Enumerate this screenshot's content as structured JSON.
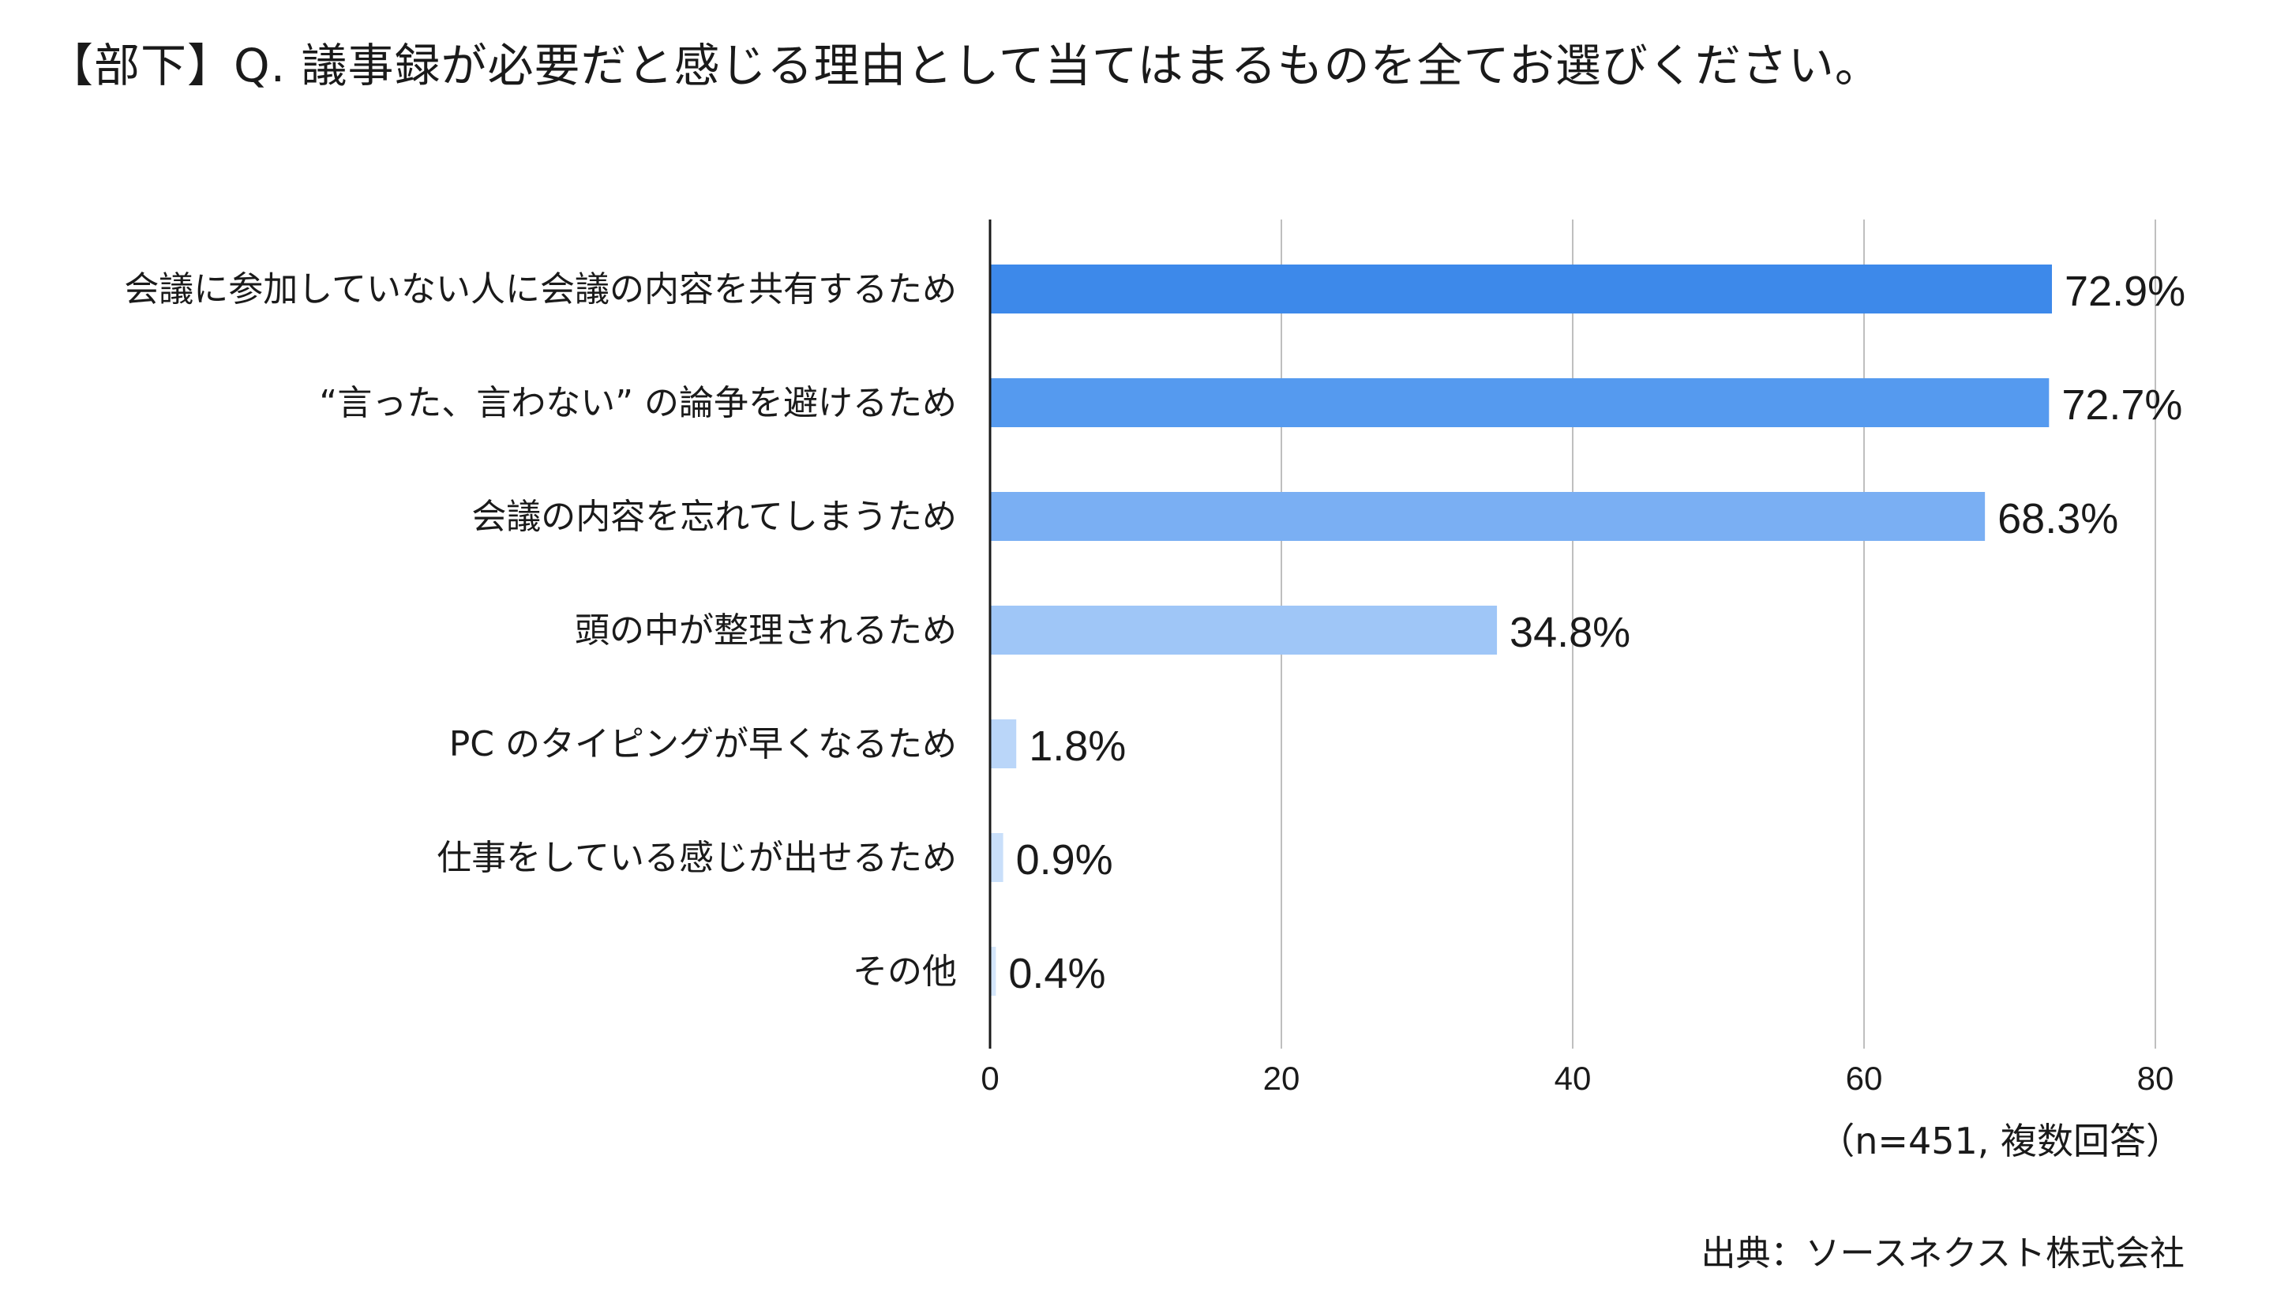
{
  "title": "【部下】Q. 議事録が必要だと感じる理由として当てはまるものを全てお選びください。",
  "sample_note": "（n=451, 複数回答）",
  "source_note": "出典：ソースネクスト株式会社",
  "colors": {
    "bar_palette": [
      "#3d89ea",
      "#559aef",
      "#7aaff3",
      "#9fc6f7",
      "#bad6f9",
      "#c9dffa",
      "#d4e6fb"
    ],
    "grid": "#bfbfbf",
    "axis": "#1a1a1a"
  },
  "chart_data": {
    "type": "bar",
    "orientation": "horizontal",
    "categories": [
      "会議に参加していない人に会議の内容を共有するため",
      "“言った、言わない” の論争を避けるため",
      "会議の内容を忘れてしまうため",
      "頭の中が整理されるため",
      "PC のタイピングが早くなるため",
      "仕事をしている感じが出せるため",
      "その他"
    ],
    "values": [
      72.9,
      72.7,
      68.3,
      34.8,
      1.8,
      0.9,
      0.4
    ],
    "value_labels": [
      "72.9%",
      "72.7%",
      "68.3%",
      "34.8%",
      "1.8%",
      "0.9%",
      "0.4%"
    ],
    "xlim": [
      0,
      80
    ],
    "xticks": [
      0,
      20,
      40,
      60,
      80
    ],
    "xtick_labels": [
      "0",
      "20",
      "40",
      "60",
      "80"
    ],
    "grid": true,
    "legend": "none"
  }
}
